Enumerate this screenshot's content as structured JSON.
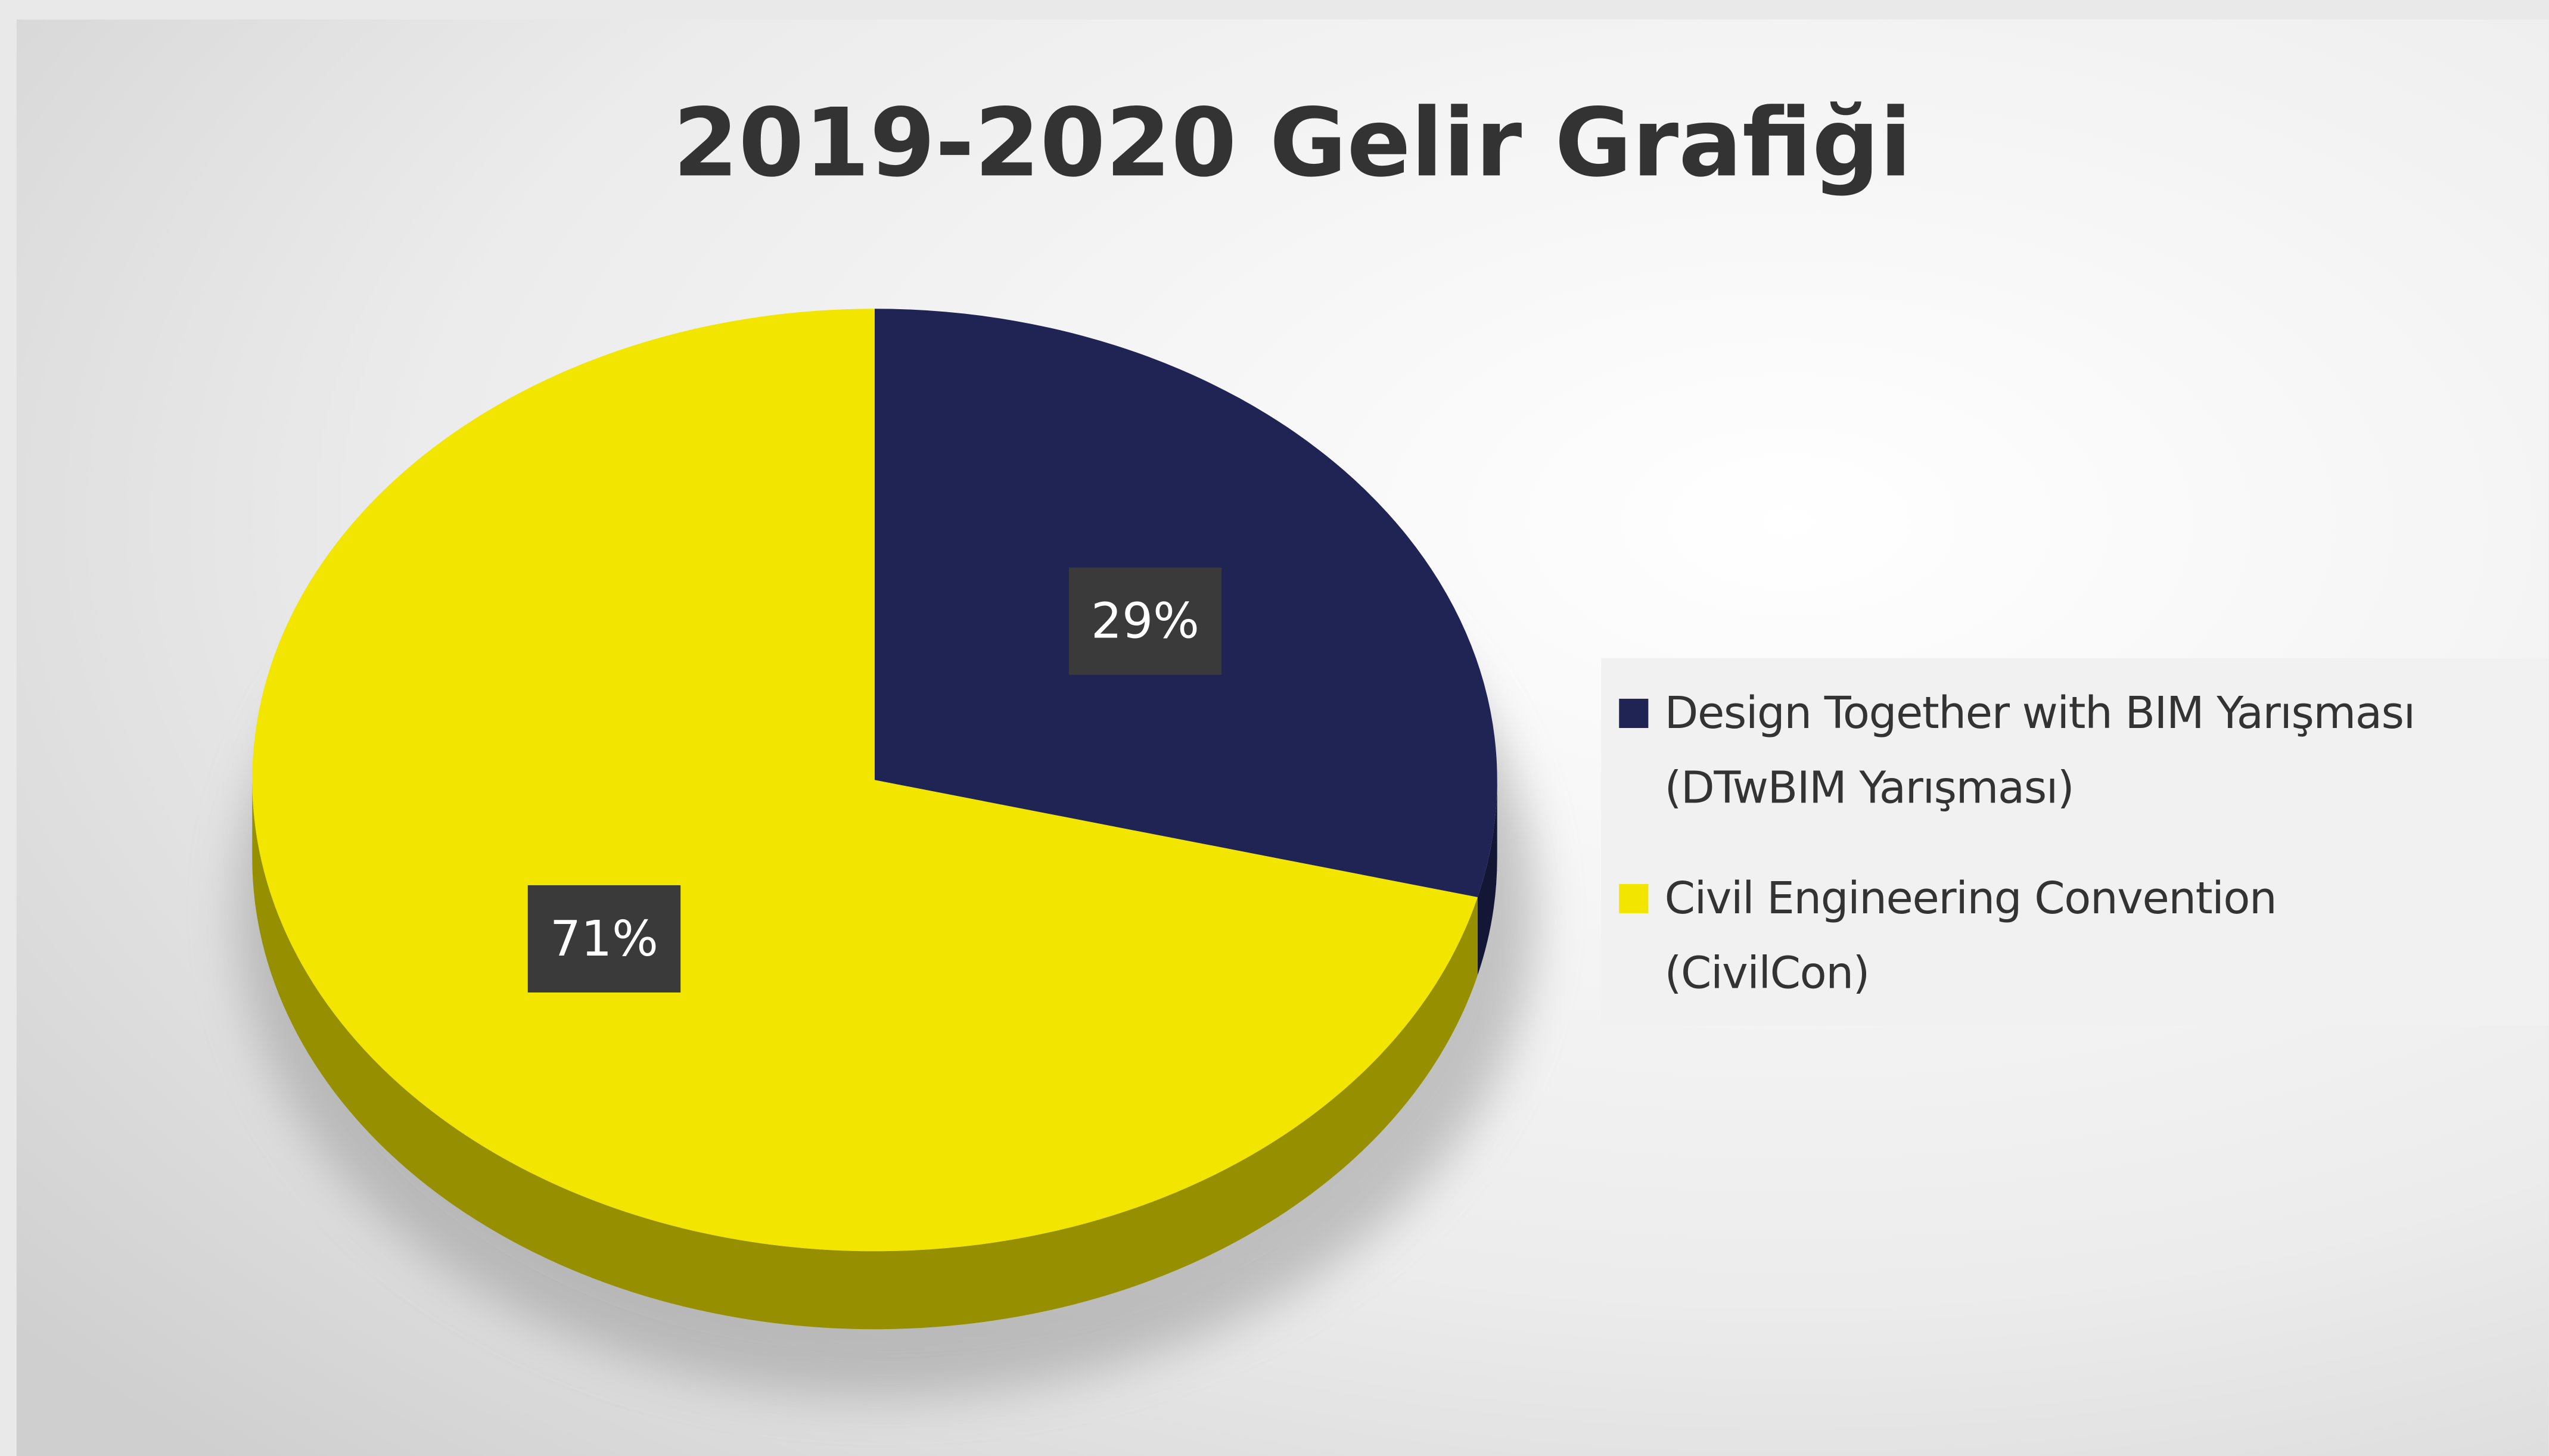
{
  "chart_data": {
    "type": "pie",
    "title": "2019-2020 Gelir Grafiği",
    "categories": [
      "Design Together with BIM Yarışması (DTwBIM Yarışması)",
      "Civil Engineering Convention (CivilCon)"
    ],
    "values": [
      29,
      71
    ],
    "value_labels": [
      "29%",
      "71%"
    ],
    "colors": [
      "#1f2455",
      "#f2e600"
    ]
  }
}
